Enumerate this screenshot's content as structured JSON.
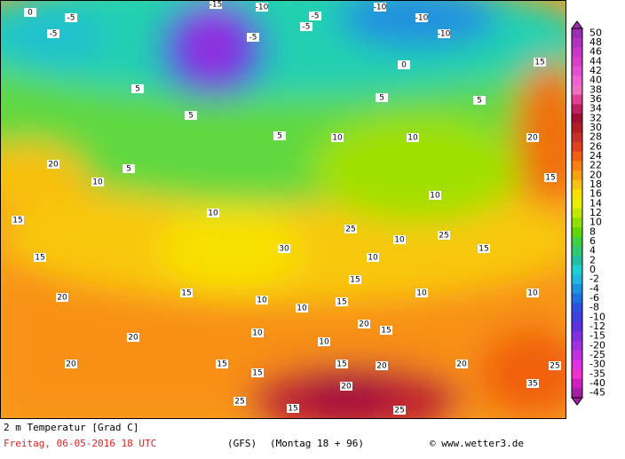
{
  "legend": {
    "labels": [
      "50",
      "48",
      "46",
      "44",
      "42",
      "40",
      "38",
      "36",
      "34",
      "32",
      "30",
      "28",
      "26",
      "24",
      "22",
      "20",
      "18",
      "16",
      "14",
      "12",
      "10",
      "8",
      "6",
      "4",
      "2",
      "0",
      "-2",
      "-4",
      "-6",
      "-8",
      "-10",
      "-12",
      "-15",
      "-20",
      "-25",
      "-30",
      "-35",
      "-40",
      "-45"
    ],
    "colors": [
      "#9a2fb0",
      "#b030c0",
      "#c838c8",
      "#d840c8",
      "#e050d0",
      "#f060d0",
      "#f070c0",
      "#e04090",
      "#c02060",
      "#a01030",
      "#b02020",
      "#c83028",
      "#e04020",
      "#f06010",
      "#f88010",
      "#f8a010",
      "#f8c010",
      "#f8e000",
      "#e8f000",
      "#c0e800",
      "#90e000",
      "#60d800",
      "#40d040",
      "#30c870",
      "#20c0a0",
      "#20d0d0",
      "#20b8e0",
      "#2090e0",
      "#2070e0",
      "#3050e0",
      "#4040e0",
      "#6030e0",
      "#8030e0",
      "#a030e0",
      "#c030e0",
      "#e030e0",
      "#f030d0",
      "#d020c0",
      "#a020a0"
    ]
  },
  "map_labels": [
    "0",
    "-5",
    "-5",
    "-15",
    "-10",
    "-5",
    "-10",
    "-10",
    "-10",
    "-5",
    "0",
    "-5",
    "5",
    "5",
    "5",
    "5",
    "10",
    "10",
    "10",
    "5",
    "5",
    "10",
    "10",
    "10",
    "10",
    "10",
    "15",
    "15",
    "20",
    "20",
    "15",
    "10",
    "10",
    "10",
    "15",
    "15",
    "20",
    "15",
    "10",
    "15",
    "20",
    "20",
    "15",
    "15",
    "15",
    "20",
    "20",
    "20",
    "25",
    "25",
    "35",
    "25",
    "30",
    "25",
    "25",
    "15",
    "10",
    "15",
    "20",
    "15"
  ],
  "footer": {
    "variable": "2 m Temperatur [Grad C]",
    "date": "Freitag, 06-05-2016  18 UTC",
    "model": "(GFS)",
    "run": "(Montag 18 + 96)",
    "copyright": "© www.wetter3.de"
  }
}
